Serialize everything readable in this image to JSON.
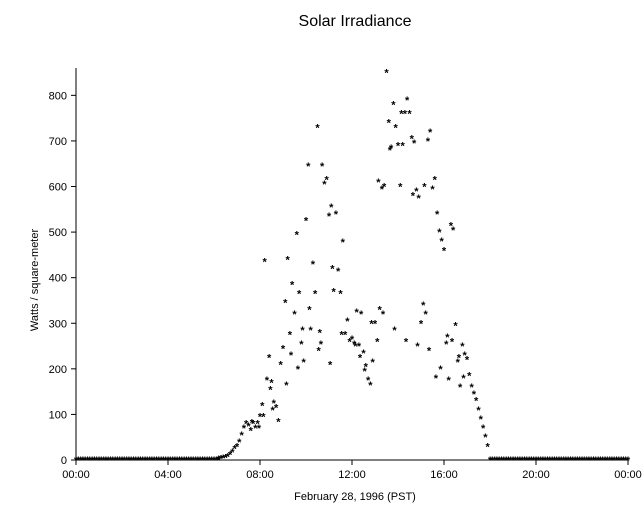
{
  "chart_data": {
    "type": "scatter",
    "title": "Solar Irradiance",
    "xlabel": "February 28, 1996 (PST)",
    "ylabel": "Watts / square-meter",
    "x_unit": "hours",
    "xlim": [
      0,
      24
    ],
    "ylim": [
      0,
      860
    ],
    "x_ticks": [
      0,
      4,
      8,
      12,
      16,
      20,
      24
    ],
    "x_tick_labels": [
      "00:00",
      "04:00",
      "08:00",
      "12:00",
      "16:00",
      "20:00",
      "00:00"
    ],
    "y_ticks": [
      0,
      100,
      200,
      300,
      400,
      500,
      600,
      700,
      800
    ],
    "y_tick_labels": [
      "0",
      "100",
      "200",
      "300",
      "400",
      "500",
      "600",
      "700",
      "800"
    ],
    "marker": "*",
    "grid": false,
    "legend": null,
    "x": [
      6.5,
      6.6,
      6.7,
      6.8,
      6.9,
      7.0,
      7.1,
      7.2,
      7.3,
      7.4,
      7.5,
      7.6,
      7.7,
      7.8,
      7.9,
      8.0,
      8.1,
      8.2,
      8.3,
      8.4,
      8.5,
      8.6,
      8.7,
      8.8,
      8.9,
      9.0,
      9.1,
      9.2,
      9.3,
      9.4,
      9.5,
      9.6,
      9.7,
      9.8,
      9.9,
      10.0,
      10.1,
      10.2,
      10.3,
      10.4,
      10.5,
      10.6,
      10.7,
      10.8,
      10.9,
      11.0,
      11.1,
      11.2,
      11.3,
      11.4,
      11.5,
      11.6,
      11.7,
      11.8,
      11.9,
      12.0,
      12.1,
      12.2,
      12.3,
      12.4,
      12.5,
      12.6,
      12.7,
      12.8,
      12.9,
      13.0,
      13.1,
      13.2,
      13.3,
      13.4,
      13.5,
      13.6,
      13.7,
      13.8,
      13.9,
      14.0,
      14.1,
      14.2,
      14.3,
      14.4,
      14.5,
      14.6,
      14.7,
      14.8,
      14.9,
      15.0,
      15.1,
      15.2,
      15.3,
      15.4,
      15.5,
      15.6,
      15.7,
      15.8,
      15.9,
      16.0,
      16.1,
      16.2,
      16.3,
      16.4,
      16.5,
      16.6,
      16.7,
      16.8,
      16.9,
      17.0,
      17.1,
      17.2,
      17.3,
      17.4,
      17.5,
      17.6,
      17.7,
      17.8,
      17.9,
      6.2,
      6.3,
      6.4,
      7.65,
      7.95,
      8.15,
      8.45,
      9.35,
      9.85,
      10.55,
      11.05,
      11.55,
      12.35,
      12.85,
      13.35,
      13.85,
      14.35,
      14.85,
      15.35,
      15.85,
      16.35,
      16.85,
      8.55,
      9.15,
      9.65,
      10.15,
      10.65,
      11.15,
      12.15,
      12.55,
      13.15,
      13.65,
      14.15,
      14.65,
      15.15,
      15.65,
      16.15,
      16.65
    ],
    "y": [
      5,
      8,
      12,
      18,
      25,
      30,
      40,
      55,
      70,
      80,
      75,
      65,
      80,
      70,
      80,
      95,
      120,
      435,
      175,
      225,
      170,
      125,
      115,
      85,
      210,
      245,
      345,
      440,
      275,
      385,
      320,
      495,
      365,
      255,
      215,
      525,
      645,
      285,
      430,
      365,
      730,
      280,
      645,
      605,
      615,
      535,
      555,
      370,
      540,
      415,
      365,
      478,
      275,
      305,
      260,
      265,
      255,
      325,
      250,
      320,
      235,
      205,
      175,
      165,
      215,
      300,
      260,
      330,
      595,
      600,
      850,
      740,
      685,
      780,
      730,
      690,
      600,
      690,
      760,
      790,
      760,
      705,
      695,
      590,
      575,
      300,
      340,
      320,
      700,
      720,
      595,
      615,
      540,
      500,
      480,
      460,
      255,
      175,
      515,
      505,
      295,
      215,
      160,
      250,
      230,
      220,
      185,
      160,
      145,
      130,
      110,
      90,
      70,
      50,
      30,
      2,
      3,
      4,
      82,
      70,
      95,
      155,
      230,
      285,
      240,
      210,
      275,
      225,
      300,
      320,
      285,
      260,
      250,
      240,
      200,
      260,
      180,
      110,
      165,
      200,
      330,
      255,
      420,
      250,
      195,
      610,
      680,
      760,
      580,
      600,
      180,
      270,
      225
    ],
    "baseline_zero_ranges": [
      [
        0,
        6.2
      ],
      [
        18.0,
        24
      ]
    ]
  }
}
